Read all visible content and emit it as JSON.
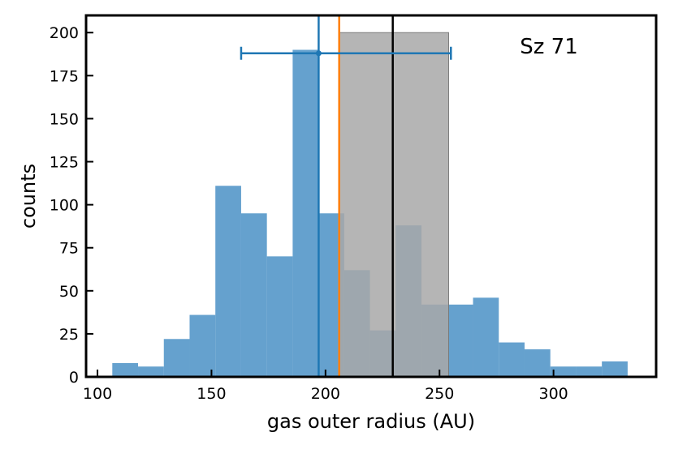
{
  "chart_data": {
    "type": "histogram",
    "xlabel": "gas outer radius (AU)",
    "ylabel": "counts",
    "annotation": "Sz 71",
    "xlim": [
      95,
      345
    ],
    "ylim": [
      0,
      210
    ],
    "x_ticks": [
      100,
      150,
      200,
      250,
      300
    ],
    "y_ticks": [
      0,
      25,
      50,
      75,
      100,
      125,
      150,
      175,
      200
    ],
    "histogram": {
      "color": "#3a87c0",
      "bin_edges": [
        106.5,
        117.8,
        129.1,
        140.4,
        151.7,
        163.0,
        174.3,
        185.6,
        196.9,
        208.2,
        219.5,
        230.8,
        242.1,
        253.4,
        264.7,
        276.0,
        287.3,
        298.6,
        309.9,
        321.2,
        332.5
      ],
      "counts": [
        8,
        6,
        22,
        36,
        111,
        95,
        70,
        190,
        95,
        62,
        27,
        88,
        42,
        42,
        46,
        20,
        16,
        6,
        6,
        9
      ]
    },
    "shaded_interval": {
      "x": [
        206,
        254
      ],
      "height": 200,
      "color": "#a8a8a8"
    },
    "vertical_lines": [
      {
        "x": 197,
        "color": "#1f77b4"
      },
      {
        "x": 206,
        "color": "#ff7f0e"
      },
      {
        "x": 229.5,
        "color": "#000000"
      }
    ],
    "errorbar": {
      "center": 197,
      "y": 188,
      "low": 163,
      "high": 255,
      "color": "#1f77b4"
    }
  }
}
